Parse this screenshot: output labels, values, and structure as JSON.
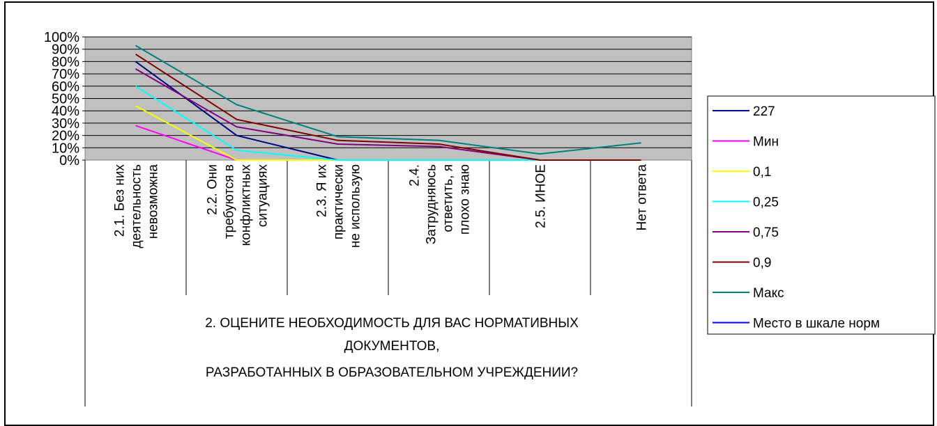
{
  "chart_data": {
    "type": "line",
    "categories": [
      [
        "2.1. Без них",
        "деятельность",
        "невозможна"
      ],
      [
        "2.2. Они",
        "требуются    в",
        "конфликтных",
        "ситуациях"
      ],
      [
        "2.3. Я их",
        "практически",
        "не использую"
      ],
      [
        "2.4.",
        "Затрудняюсь",
        "ответить, я",
        "плохо знаю"
      ],
      [
        "2.5. ИНОЕ"
      ],
      [
        "Нет ответа"
      ]
    ],
    "y_ticks": [
      "0%",
      "10%",
      "20%",
      "30%",
      "40%",
      "50%",
      "60%",
      "70%",
      "80%",
      "90%",
      "100%"
    ],
    "ylim": [
      0,
      100
    ],
    "grid": true,
    "legend_position": "right",
    "x_title_lines": [
      "2. ОЦЕНИТЕ НЕОБХОДИМОСТЬ ДЛЯ ВАС НОРМАТИВНЫХ",
      "ДОКУМЕНТОВ,",
      "РАЗРАБОТАННЫХ В ОБРАЗОВАТЕЛЬНОМ УЧРЕЖДЕНИИ?"
    ],
    "series": [
      {
        "name": "227",
        "color": "#000080",
        "values": [
          80,
          20,
          0,
          null,
          null,
          null
        ]
      },
      {
        "name": "Мин",
        "color": "#ff00ff",
        "values": [
          28,
          0,
          0,
          0,
          0,
          null
        ]
      },
      {
        "name": "0,1",
        "color": "#ffff00",
        "values": [
          44,
          0,
          0,
          0,
          0,
          null
        ]
      },
      {
        "name": "0,25",
        "color": "#00ffff",
        "values": [
          60,
          8,
          0,
          0,
          0,
          null
        ]
      },
      {
        "name": "0,75",
        "color": "#800080",
        "values": [
          74,
          27,
          13,
          11,
          0,
          0
        ]
      },
      {
        "name": "0,9",
        "color": "#800000",
        "values": [
          86,
          33,
          16,
          13,
          0,
          0
        ]
      },
      {
        "name": "Макс",
        "color": "#008080",
        "values": [
          93,
          45,
          19,
          16,
          5,
          14
        ]
      },
      {
        "name": "Место в шкале норм",
        "color": "#0000ff",
        "values": [
          null,
          null,
          null,
          null,
          null,
          null
        ]
      }
    ]
  }
}
